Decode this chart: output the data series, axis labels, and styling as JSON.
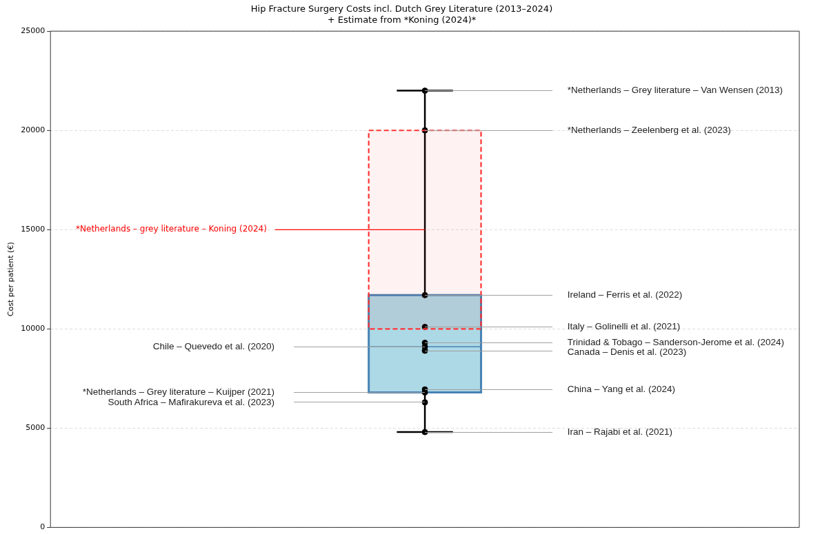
{
  "chart_data": {
    "type": "box",
    "title": "Hip Fracture Surgery Costs incl. Dutch Grey Literature (2013–2024)",
    "subtitle": "+ Estimate from *Koning (2024)*",
    "ylabel": "Cost per patient (€)",
    "categories": [
      null
    ],
    "series": [
      {
        "color": "#add8e6",
        "boxes": [
          {
            "low": 4800,
            "q1": 6800,
            "median": 9100,
            "q3": 11700,
            "high": 22000
          }
        ]
      },
      {
        "type": "scatter",
        "color": "#000000",
        "x": [
          null,
          null,
          null,
          null,
          null,
          null,
          null,
          null,
          null,
          null,
          null
        ],
        "values": [
          22000,
          20000,
          11700,
          10100,
          9300,
          9100,
          8900,
          6950,
          6800,
          6300,
          4800
        ]
      }
    ],
    "ylim": [
      0,
      25000
    ],
    "yticks": [
      0,
      5000,
      10000,
      15000,
      20000,
      25000
    ],
    "grid": "y",
    "tick_labels": "y",
    "marker": "circle",
    "bands": [
      {
        "axis": "y",
        "from": 10000,
        "to": 20000,
        "color": "#ff3333"
      }
    ],
    "ref_lines": [
      {
        "axis": "y",
        "value": 15000,
        "label": "*Netherlands – grey literature – Koning (2024)",
        "color": "#ff0000"
      }
    ],
    "annotations": [
      "*Netherlands – Grey literature – Van Wensen (2013)",
      "*Netherlands – Zeelenberg et al. (2023)",
      "Ireland – Ferris et al. (2022)",
      "Italy – Golinelli et al. (2021)",
      "Trinidad & Tobago – Sanderson-Jerome et al. (2024)",
      "Chile – Quevedo et al. (2020)",
      "Canada – Denis et al. (2023)",
      "China – Yang et al. (2024)",
      "*Netherlands – Grey literature – Kuijper (2021)",
      "South Africa – Mafirakureva et al. (2023)",
      "Iran – Rajabi et al. (2021)"
    ]
  }
}
